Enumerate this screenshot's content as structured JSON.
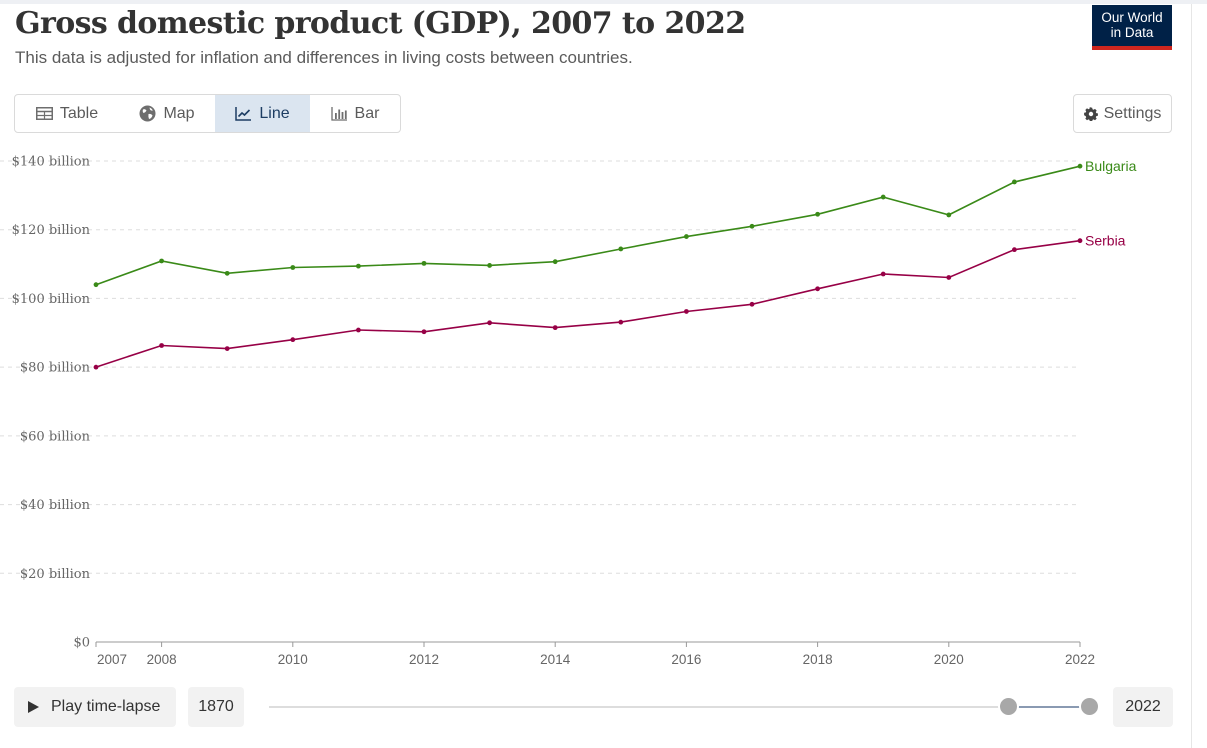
{
  "header": {
    "title": "Gross domestic product (GDP), 2007 to 2022",
    "subtitle": "This data is adjusted for inflation and differences in living costs between countries.",
    "logo_line1": "Our World",
    "logo_line2": "in Data"
  },
  "tabs": [
    {
      "label": "Table",
      "icon": "table-icon",
      "active": false
    },
    {
      "label": "Map",
      "icon": "globe-icon",
      "active": false
    },
    {
      "label": "Line",
      "icon": "line-chart-icon",
      "active": true
    },
    {
      "label": "Bar",
      "icon": "bar-chart-icon",
      "active": false
    }
  ],
  "settings_label": "Settings",
  "timeline": {
    "play_label": "Play time-lapse",
    "start_year": "1870",
    "end_year": "2022",
    "selected_start": 2007,
    "selected_end": 2022
  },
  "colors": {
    "Bulgaria": "#3a8a18",
    "Serbia": "#970046",
    "grid": "#dddddd",
    "axis": "#999999"
  },
  "chart_data": {
    "type": "line",
    "title": "Gross domestic product (GDP), 2007 to 2022",
    "subtitle": "This data is adjusted for inflation and differences in living costs between countries.",
    "xlabel": "",
    "ylabel": "",
    "x": [
      2007,
      2008,
      2009,
      2010,
      2011,
      2012,
      2013,
      2014,
      2015,
      2016,
      2017,
      2018,
      2019,
      2020,
      2021,
      2022
    ],
    "xticks": [
      2007,
      2008,
      2010,
      2012,
      2014,
      2016,
      2018,
      2020,
      2022
    ],
    "yticks": [
      {
        "value": 0,
        "label": "$0"
      },
      {
        "value": 20,
        "label": "$20 billion"
      },
      {
        "value": 40,
        "label": "$40 billion"
      },
      {
        "value": 60,
        "label": "$60 billion"
      },
      {
        "value": 80,
        "label": "$80 billion"
      },
      {
        "value": 100,
        "label": "$100 billion"
      },
      {
        "value": 120,
        "label": "$120 billion"
      },
      {
        "value": 140,
        "label": "$140 billion"
      }
    ],
    "ylim": [
      0,
      140
    ],
    "xlim": [
      2007,
      2022
    ],
    "grid": "horizontal dashed",
    "legend": "inline labels at line ends",
    "series": [
      {
        "name": "Bulgaria",
        "values": [
          104.0,
          110.9,
          107.3,
          109.0,
          109.4,
          110.2,
          109.6,
          110.7,
          114.4,
          118.0,
          121.0,
          124.5,
          129.5,
          124.3,
          133.9,
          138.5
        ]
      },
      {
        "name": "Serbia",
        "values": [
          80.0,
          86.3,
          85.4,
          88.0,
          90.8,
          90.3,
          92.9,
          91.5,
          93.1,
          96.2,
          98.3,
          102.8,
          107.1,
          106.1,
          114.2,
          116.8
        ]
      }
    ]
  }
}
